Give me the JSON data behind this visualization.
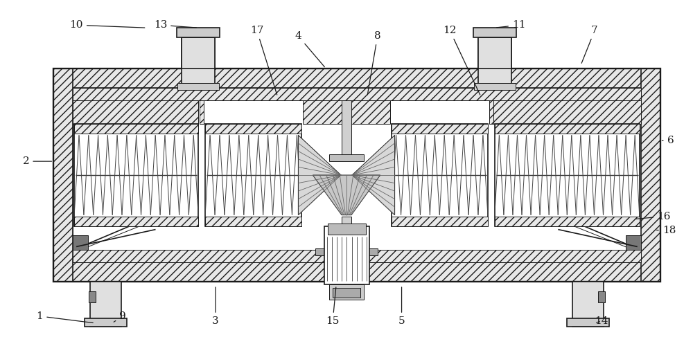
{
  "bg_color": "#ffffff",
  "line_color": "#1a1a1a",
  "hatch_density": "///",
  "lw_main": 1.2,
  "lw_thin": 0.7,
  "figsize": [
    10.0,
    5.13
  ],
  "dpi": 100
}
